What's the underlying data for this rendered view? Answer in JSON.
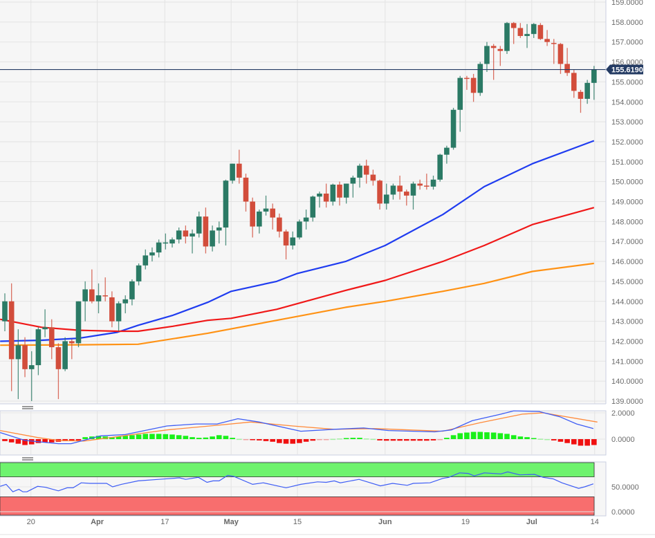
{
  "chart_data": {
    "type": "candlestick",
    "title": "",
    "colors": {
      "up": "#2b7a65",
      "down": "#d24d3b",
      "ma_fast": "#1f3cf0",
      "ma_mid": "#f01818",
      "ma_slow": "#ff9214",
      "macd": "#3d5cf5",
      "signal": "#ff8a3a",
      "hist_up": "#19f019",
      "hist_down": "#f01010",
      "last_price_bg": "#243b63",
      "rsi_over": "#6ef36e",
      "rsi_under": "#f86e6e"
    },
    "ylim": [
      139,
      159
    ],
    "y_ticks": [
      "139.0000",
      "140.0000",
      "141.0000",
      "142.0000",
      "143.0000",
      "144.0000",
      "145.0000",
      "146.0000",
      "147.0000",
      "148.0000",
      "149.0000",
      "150.0000",
      "151.0000",
      "152.0000",
      "153.0000",
      "154.0000",
      "155.0000",
      "156.0000",
      "157.0000",
      "158.0000",
      "159.0000"
    ],
    "last_price": 155.619,
    "last_price_label": "155.6190",
    "x_ticks": [
      {
        "index": 3.9,
        "label": "20",
        "bold": false
      },
      {
        "index": 13.8,
        "label": "Apr",
        "bold": true
      },
      {
        "index": 23.9,
        "label": "17",
        "bold": false
      },
      {
        "index": 33.8,
        "label": "May",
        "bold": true
      },
      {
        "index": 43.7,
        "label": "15",
        "bold": false
      },
      {
        "index": 56.8,
        "label": "Jun",
        "bold": true
      },
      {
        "index": 68.8,
        "label": "19",
        "bold": false
      },
      {
        "index": 78.7,
        "label": "Jul",
        "bold": true
      },
      {
        "index": 88.1,
        "label": "14",
        "bold": false
      }
    ],
    "candles_ohlc": [
      [
        143.0,
        144.4,
        142.5,
        144.0
      ],
      [
        144.0,
        144.9,
        139.5,
        141.1
      ],
      [
        141.1,
        142.6,
        139.1,
        141.8
      ],
      [
        141.8,
        142.2,
        140.2,
        140.6
      ],
      [
        140.6,
        141.5,
        139.0,
        140.8
      ],
      [
        140.8,
        142.7,
        140.3,
        142.6
      ],
      [
        142.6,
        143.6,
        142.2,
        142.7
      ],
      [
        142.7,
        143.1,
        141.1,
        141.7
      ],
      [
        141.7,
        141.9,
        139.1,
        140.6
      ],
      [
        140.6,
        142.2,
        140.5,
        142.0
      ],
      [
        142.0,
        142.1,
        141.1,
        141.9
      ],
      [
        141.9,
        144.0,
        141.7,
        144.0
      ],
      [
        144.0,
        145.0,
        143.0,
        144.6
      ],
      [
        144.6,
        145.6,
        143.9,
        144.0
      ],
      [
        144.0,
        144.9,
        143.4,
        144.3
      ],
      [
        144.3,
        145.2,
        144.0,
        144.25
      ],
      [
        144.2,
        144.5,
        142.7,
        143.0
      ],
      [
        143.0,
        144.0,
        142.5,
        143.9
      ],
      [
        143.9,
        144.3,
        143.4,
        144.1
      ],
      [
        144.1,
        145.1,
        143.8,
        145.0
      ],
      [
        145.0,
        145.9,
        144.8,
        145.8
      ],
      [
        145.8,
        146.6,
        145.6,
        146.3
      ],
      [
        146.3,
        146.7,
        146.0,
        146.45
      ],
      [
        146.45,
        147.1,
        146.2,
        146.95
      ],
      [
        146.95,
        147.4,
        146.6,
        146.95
      ],
      [
        146.9,
        147.2,
        146.7,
        147.1
      ],
      [
        147.1,
        147.7,
        146.9,
        147.55
      ],
      [
        147.55,
        147.8,
        146.9,
        147.25
      ],
      [
        147.25,
        147.6,
        146.4,
        147.4
      ],
      [
        147.4,
        148.5,
        147.2,
        148.25
      ],
      [
        148.25,
        148.7,
        146.4,
        146.75
      ],
      [
        146.75,
        147.8,
        146.5,
        147.55
      ],
      [
        147.55,
        148.0,
        146.9,
        147.7
      ],
      [
        147.7,
        150.1,
        146.8,
        150.05
      ],
      [
        150.05,
        150.9,
        149.9,
        150.9
      ],
      [
        150.9,
        151.6,
        149.9,
        150.2
      ],
      [
        150.2,
        150.4,
        148.5,
        149.0
      ],
      [
        149.0,
        149.2,
        147.2,
        147.75
      ],
      [
        147.75,
        148.6,
        147.4,
        148.5
      ],
      [
        148.5,
        149.3,
        148.3,
        148.65
      ],
      [
        148.65,
        148.9,
        147.6,
        148.2
      ],
      [
        148.2,
        148.4,
        147.2,
        147.5
      ],
      [
        147.5,
        147.6,
        146.1,
        146.8
      ],
      [
        146.8,
        147.5,
        146.6,
        147.2
      ],
      [
        147.2,
        148.1,
        147.1,
        148.0
      ],
      [
        148.0,
        148.6,
        147.6,
        148.2
      ],
      [
        148.2,
        149.3,
        148.0,
        149.25
      ],
      [
        149.25,
        149.5,
        148.7,
        149.4
      ],
      [
        149.4,
        149.9,
        148.7,
        149.0
      ],
      [
        149.0,
        149.9,
        148.8,
        149.85
      ],
      [
        149.85,
        150.0,
        148.8,
        149.2
      ],
      [
        149.2,
        149.9,
        148.9,
        149.9
      ],
      [
        149.9,
        150.3,
        149.2,
        150.2
      ],
      [
        150.2,
        150.9,
        149.7,
        150.8
      ],
      [
        150.8,
        151.1,
        149.9,
        150.35
      ],
      [
        150.35,
        150.6,
        149.8,
        150.05
      ],
      [
        150.05,
        150.1,
        148.6,
        148.9
      ],
      [
        148.9,
        149.9,
        148.6,
        149.35
      ],
      [
        149.35,
        149.9,
        149.1,
        149.8
      ],
      [
        149.8,
        150.3,
        149.1,
        149.5
      ],
      [
        149.5,
        149.6,
        148.8,
        149.3
      ],
      [
        149.3,
        150.0,
        148.6,
        149.9
      ],
      [
        149.9,
        150.1,
        149.6,
        149.8
      ],
      [
        149.8,
        150.4,
        149.6,
        149.75
      ],
      [
        149.75,
        150.3,
        149.6,
        150.1
      ],
      [
        150.1,
        151.4,
        150.0,
        151.35
      ],
      [
        151.35,
        151.8,
        150.9,
        151.7
      ],
      [
        151.7,
        153.7,
        151.6,
        153.6
      ],
      [
        153.6,
        155.3,
        152.5,
        155.2
      ],
      [
        155.2,
        155.3,
        154.6,
        155.15
      ],
      [
        155.2,
        155.4,
        154.0,
        154.45
      ],
      [
        154.45,
        156.0,
        154.3,
        155.9
      ],
      [
        155.9,
        157.0,
        155.5,
        156.8
      ],
      [
        156.8,
        156.9,
        155.1,
        156.7
      ],
      [
        156.65,
        156.8,
        155.8,
        156.55
      ],
      [
        156.55,
        158.0,
        156.4,
        157.95
      ],
      [
        157.95,
        158.0,
        156.9,
        157.7
      ],
      [
        157.7,
        157.95,
        157.2,
        157.3
      ],
      [
        157.3,
        157.9,
        156.7,
        157.4
      ],
      [
        157.4,
        157.95,
        157.2,
        157.9
      ],
      [
        157.85,
        157.95,
        157.1,
        157.15
      ],
      [
        157.15,
        157.6,
        156.8,
        157.0
      ],
      [
        156.95,
        157.15,
        155.9,
        156.9
      ],
      [
        156.9,
        156.95,
        155.4,
        155.9
      ],
      [
        155.9,
        156.7,
        155.3,
        155.45
      ],
      [
        155.45,
        155.6,
        154.2,
        154.55
      ],
      [
        154.5,
        154.6,
        153.45,
        154.15
      ],
      [
        154.15,
        155.1,
        153.9,
        154.95
      ],
      [
        154.95,
        155.8,
        154.1,
        155.62
      ]
    ],
    "moving_averages": [
      {
        "name": "MA fast (blue)",
        "points": [
          [
            -0.7,
            142.0
          ],
          [
            5.5,
            142.05
          ],
          [
            11.1,
            142.15
          ],
          [
            16.8,
            142.45
          ],
          [
            19.9,
            142.8
          ],
          [
            25.1,
            143.3
          ],
          [
            30.3,
            143.95
          ],
          [
            33.8,
            144.5
          ],
          [
            40.6,
            145.0
          ],
          [
            43.7,
            145.4
          ],
          [
            50.9,
            146.0
          ],
          [
            56.8,
            146.8
          ],
          [
            65.4,
            148.35
          ],
          [
            71.6,
            149.75
          ],
          [
            78.8,
            150.9
          ],
          [
            88,
            152.05
          ]
        ]
      },
      {
        "name": "MA mid (red)",
        "points": [
          [
            -0.7,
            143.1
          ],
          [
            5.5,
            142.7
          ],
          [
            11.1,
            142.55
          ],
          [
            16.8,
            142.5
          ],
          [
            19.9,
            142.5
          ],
          [
            25.1,
            142.75
          ],
          [
            30.3,
            143.05
          ],
          [
            33.8,
            143.15
          ],
          [
            40.6,
            143.6
          ],
          [
            50.9,
            144.55
          ],
          [
            56.8,
            145.05
          ],
          [
            65.4,
            146.0
          ],
          [
            71.6,
            146.8
          ],
          [
            78.8,
            147.85
          ],
          [
            88,
            148.7
          ]
        ]
      },
      {
        "name": "MA slow (orange)",
        "points": [
          [
            -0.7,
            141.8
          ],
          [
            11.1,
            141.82
          ],
          [
            19.9,
            141.85
          ],
          [
            30.3,
            142.4
          ],
          [
            40.6,
            143.05
          ],
          [
            50.9,
            143.7
          ],
          [
            56.8,
            144.0
          ],
          [
            65.4,
            144.5
          ],
          [
            71.6,
            144.9
          ],
          [
            78.8,
            145.5
          ],
          [
            88,
            145.9
          ]
        ]
      }
    ],
    "macd": {
      "ylim": [
        -1.2,
        2.4
      ],
      "y_ticks": [
        {
          "value": 2.0,
          "label": "2.0000"
        },
        {
          "value": 0.0,
          "label": "0.0000"
        }
      ],
      "macd_line": [
        [
          -0.7,
          0.5
        ],
        [
          3.0,
          -0.1
        ],
        [
          8.0,
          -0.35
        ],
        [
          9.9,
          -0.35
        ],
        [
          14.3,
          0.25
        ],
        [
          18.0,
          0.35
        ],
        [
          24.2,
          1.0
        ],
        [
          28.6,
          1.15
        ],
        [
          31.7,
          1.15
        ],
        [
          34.8,
          1.55
        ],
        [
          38.0,
          1.3
        ],
        [
          44.2,
          0.6
        ],
        [
          49.2,
          0.75
        ],
        [
          53.6,
          0.85
        ],
        [
          57.3,
          0.65
        ],
        [
          64.2,
          0.55
        ],
        [
          66.7,
          0.7
        ],
        [
          69.8,
          1.4
        ],
        [
          74.1,
          1.9
        ],
        [
          76.0,
          2.15
        ],
        [
          79.8,
          2.1
        ],
        [
          82.9,
          1.7
        ],
        [
          85.4,
          1.15
        ],
        [
          87.9,
          0.8
        ]
      ],
      "signal_line": [
        [
          -0.7,
          0.65
        ],
        [
          4.9,
          0.12
        ],
        [
          8.0,
          -0.1
        ],
        [
          11.8,
          -0.15
        ],
        [
          15.5,
          0.1
        ],
        [
          24.2,
          0.7
        ],
        [
          31.7,
          1.05
        ],
        [
          36.7,
          1.3
        ],
        [
          43.0,
          1.0
        ],
        [
          49.2,
          0.75
        ],
        [
          55.4,
          0.8
        ],
        [
          65.4,
          0.6
        ],
        [
          71.0,
          1.25
        ],
        [
          77.3,
          1.9
        ],
        [
          80.4,
          2.0
        ],
        [
          88.5,
          1.3
        ]
      ],
      "histogram": [
        -0.15,
        -0.25,
        -0.35,
        -0.45,
        -0.4,
        -0.3,
        -0.25,
        -0.25,
        -0.2,
        -0.15,
        -0.15,
        -0.1,
        0.15,
        0.2,
        0.25,
        0.2,
        0.15,
        0.2,
        0.25,
        0.3,
        0.35,
        0.4,
        0.4,
        0.4,
        0.38,
        0.35,
        0.3,
        0.25,
        0.15,
        0.1,
        0.12,
        0.2,
        0.3,
        0.25,
        0.1,
        0.02,
        -0.03,
        -0.08,
        -0.1,
        -0.15,
        -0.2,
        -0.3,
        -0.35,
        -0.35,
        -0.3,
        -0.2,
        -0.12,
        -0.05,
        -0.02,
        0.02,
        0.05,
        0.08,
        0.1,
        0.1,
        0.05,
        0.02,
        -0.1,
        -0.12,
        -0.12,
        -0.12,
        -0.12,
        -0.12,
        -0.12,
        -0.12,
        -0.1,
        -0.02,
        0.1,
        0.3,
        0.45,
        0.5,
        0.55,
        0.55,
        0.52,
        0.5,
        0.45,
        0.4,
        0.3,
        0.2,
        0.15,
        0.08,
        0.03,
        0.0,
        -0.1,
        -0.2,
        -0.3,
        -0.4,
        -0.5,
        -0.5,
        -0.45
      ]
    },
    "rsi": {
      "ylim": [
        -7,
        100
      ],
      "overbought": 70,
      "oversold": 30,
      "y_ticks": [
        {
          "value": 50,
          "label": "50.0000"
        },
        {
          "value": 0,
          "label": "0.0000"
        }
      ],
      "points": [
        [
          -0.7,
          51
        ],
        [
          0.2,
          55
        ],
        [
          1.2,
          40
        ],
        [
          2.1,
          45
        ],
        [
          2.7,
          40
        ],
        [
          3.3,
          40
        ],
        [
          4.9,
          51
        ],
        [
          6.1,
          49
        ],
        [
          8.0,
          42
        ],
        [
          9.3,
          48
        ],
        [
          10.2,
          48
        ],
        [
          11.4,
          58
        ],
        [
          12.7,
          57
        ],
        [
          15.2,
          57
        ],
        [
          16.1,
          50
        ],
        [
          17.4,
          55
        ],
        [
          19.9,
          62
        ],
        [
          23.0,
          65
        ],
        [
          26.1,
          68
        ],
        [
          27.0,
          65
        ],
        [
          28.9,
          69
        ],
        [
          30.2,
          59
        ],
        [
          31.1,
          62
        ],
        [
          32.0,
          62
        ],
        [
          33.3,
          73
        ],
        [
          34.2,
          71
        ],
        [
          37.0,
          55
        ],
        [
          38.6,
          58
        ],
        [
          42.0,
          48
        ],
        [
          44.2,
          55
        ],
        [
          46.7,
          60
        ],
        [
          48.0,
          59
        ],
        [
          49.2,
          62
        ],
        [
          50.1,
          58
        ],
        [
          52.9,
          65
        ],
        [
          56.1,
          52
        ],
        [
          57.9,
          57
        ],
        [
          60.1,
          53
        ],
        [
          61.0,
          57
        ],
        [
          63.5,
          58
        ],
        [
          65.4,
          67
        ],
        [
          66.3,
          69
        ],
        [
          67.9,
          78
        ],
        [
          69.2,
          77
        ],
        [
          70.1,
          72
        ],
        [
          71.6,
          78
        ],
        [
          74.1,
          76
        ],
        [
          75.1,
          80
        ],
        [
          76.9,
          74
        ],
        [
          79.1,
          75
        ],
        [
          80.4,
          69
        ],
        [
          81.9,
          66
        ],
        [
          83.2,
          58
        ],
        [
          85.7,
          47
        ],
        [
          86.6,
          50
        ],
        [
          87.9,
          56
        ]
      ]
    }
  }
}
